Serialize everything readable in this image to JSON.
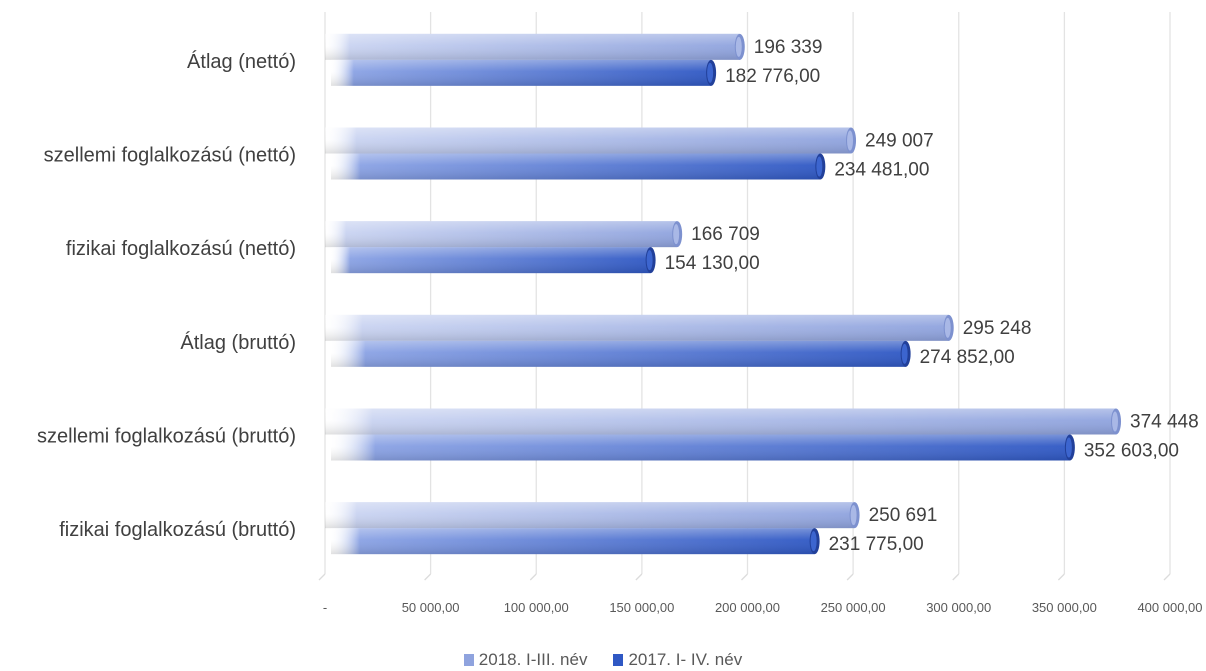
{
  "chart_data": {
    "type": "bar",
    "orientation": "horizontal",
    "categories": [
      "fizikai foglalkozású (bruttó)",
      "szellemi foglalkozású (bruttó)",
      "Átlag (bruttó)",
      "fizikai foglalkozású (nettó)",
      "szellemi foglalkozású (nettó)",
      "Átlag (nettó)"
    ],
    "series": [
      {
        "name": "2018. I-III. név",
        "values": [
          250691,
          374448,
          295248,
          166709,
          249007,
          196339
        ],
        "value_labels": [
          "250 691",
          "374 448",
          "295 248",
          "166 709",
          "249 007",
          "196 339"
        ],
        "color": "#8FA3DE"
      },
      {
        "name": "2017. I- IV. név",
        "values": [
          231775,
          352603,
          274852,
          154130,
          234481,
          182776
        ],
        "value_labels": [
          "231 775,00",
          "352 603,00",
          "274 852,00",
          "154 130,00",
          "234 481,00",
          "182 776,00"
        ],
        "color": "#2F58C4"
      }
    ],
    "xlim": [
      0,
      400000
    ],
    "x_ticks": [
      0,
      50000,
      100000,
      150000,
      200000,
      250000,
      300000,
      350000,
      400000
    ],
    "x_tick_labels": [
      "-",
      "50 000,00",
      "100 000,00",
      "150 000,00",
      "200 000,00",
      "250 000,00",
      "300 000,00",
      "350 000,00",
      "400 000,00"
    ],
    "grid": true,
    "legend_position": "bottom"
  }
}
